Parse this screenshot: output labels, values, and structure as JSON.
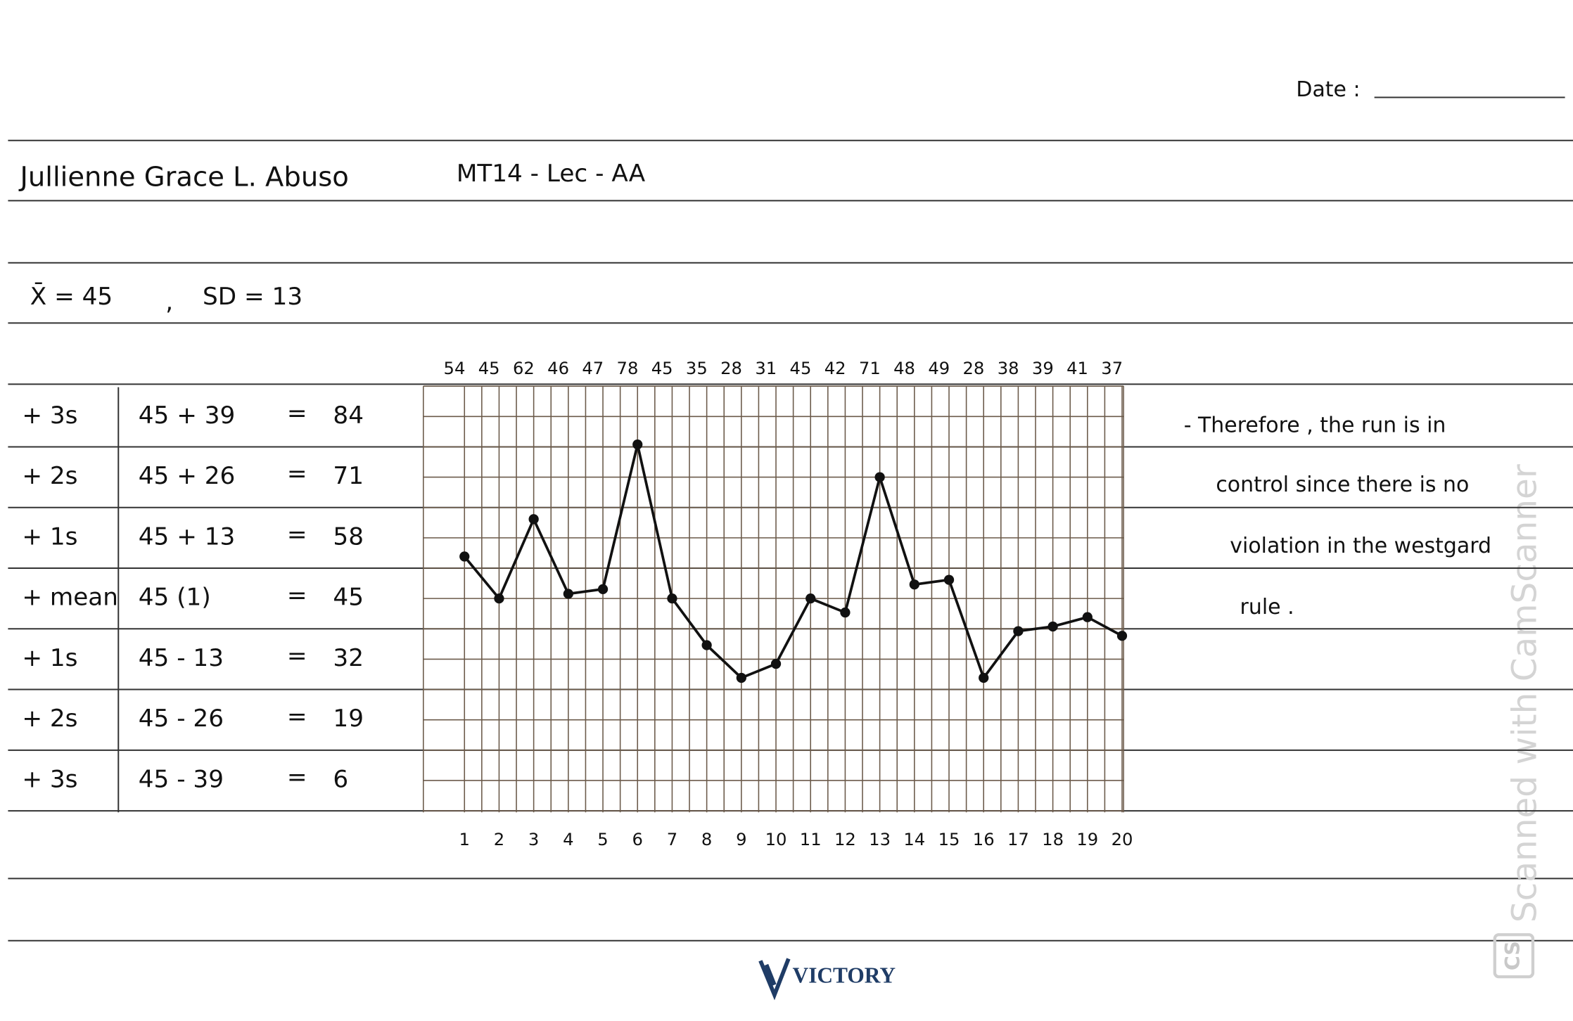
{
  "header": {
    "date_label": "Date :",
    "name": "Jullienne Grace L. Abuso",
    "course": "MT14 - Lec - AA"
  },
  "stats": {
    "mean": "X̄ = 45",
    "sd": "SD = 13"
  },
  "table": {
    "rows": [
      {
        "label": "+ 3s",
        "expression": "45 + 39",
        "equals": "=",
        "result": 84
      },
      {
        "label": "+ 2s",
        "expression": "45 + 26",
        "equals": "=",
        "result": 71
      },
      {
        "label": "+ 1s",
        "expression": "45 + 13",
        "equals": "=",
        "result": 58
      },
      {
        "label": "+ mean",
        "expression": "45 (1)",
        "equals": "=",
        "result": 45
      },
      {
        "label": "+ 1s",
        "expression": "45 - 13",
        "equals": "=",
        "result": 32
      },
      {
        "label": "+ 2s",
        "expression": "45 - 26",
        "equals": "=",
        "result": 19
      },
      {
        "label": "+ 3s",
        "expression": "45 - 39",
        "equals": "=",
        "result": 6
      }
    ]
  },
  "chart": {
    "type": "line",
    "values": [
      54,
      45,
      62,
      46,
      47,
      78,
      45,
      35,
      28,
      31,
      45,
      42,
      71,
      48,
      49,
      28,
      38,
      39,
      41,
      37
    ],
    "runs": [
      1,
      2,
      3,
      4,
      5,
      6,
      7,
      8,
      9,
      10,
      11,
      12,
      13,
      14,
      15,
      16,
      17,
      18,
      19,
      20
    ],
    "color": "#111111"
  },
  "conclusion": [
    "- Therefore , the run is in",
    "control since there is no",
    "violation in the westgard",
    "rule ."
  ],
  "footer": {
    "brand": "VICTORY",
    "watermark": "Scanned with CamScanner",
    "watermark_icon": "CS"
  }
}
